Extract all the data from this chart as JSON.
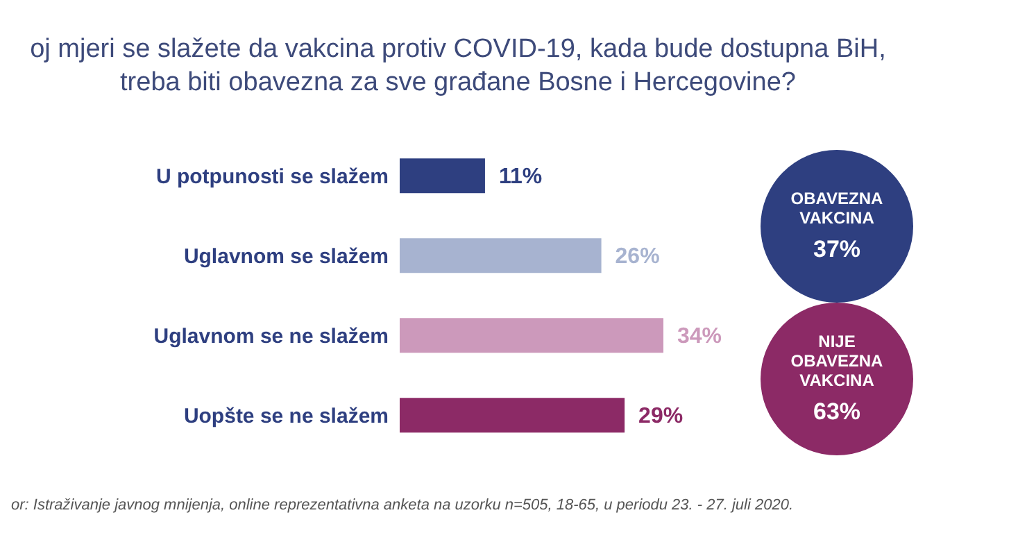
{
  "chart_data": {
    "type": "bar",
    "orientation": "horizontal",
    "title": "oj mjeri se slažete da vakcina protiv COVID-19, kada bude dostupna BiH, treba biti obavezna za sve građane Bosne i Hercegovine?",
    "categories": [
      "U potpunosti se slažem",
      "Uglavnom se slažem",
      "Uglavnom se ne slažem",
      "Uopšte se ne slažem"
    ],
    "values": [
      11,
      26,
      34,
      29
    ],
    "colors": [
      "#2e3f80",
      "#a7b3d0",
      "#cc99bb",
      "#8c2a66"
    ],
    "value_labels": [
      "11%",
      "26%",
      "34%",
      "29%"
    ],
    "grid": false,
    "legend": false,
    "tick_labels": "y",
    "annotations": [
      "OBAVEZNA\nVAKCINA\n37%",
      "NIJE\nOBAVEZNA\nVAKCINA\n63%",
      "or: Istraživanje javnog mnijenja, online reprezentativna anketa na uzorku n=505, 18-65, u periodu 23. - 27. juli 2020."
    ]
  }
}
